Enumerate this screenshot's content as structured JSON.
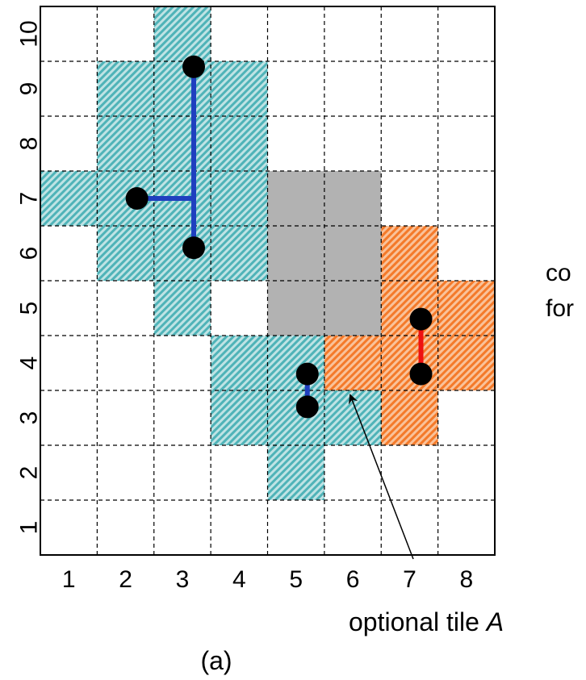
{
  "columns": [
    "1",
    "2",
    "3",
    "4",
    "5",
    "6",
    "7",
    "8"
  ],
  "rows": [
    "1",
    "2",
    "3",
    "4",
    "5",
    "6",
    "7",
    "8",
    "9",
    "10"
  ],
  "colors": {
    "teal": "#4fb3b8",
    "orange": "#f47a2a",
    "gray": "#b2b2b2",
    "blue_wire": "#1f3fbf",
    "red_wire": "#ee1111",
    "node": "#000000"
  },
  "regions": {
    "teal_cells": [
      [
        3,
        10
      ],
      [
        2,
        9
      ],
      [
        3,
        9
      ],
      [
        4,
        9
      ],
      [
        2,
        8
      ],
      [
        3,
        8
      ],
      [
        4,
        8
      ],
      [
        1,
        7
      ],
      [
        2,
        7
      ],
      [
        3,
        7
      ],
      [
        4,
        7
      ],
      [
        2,
        6
      ],
      [
        3,
        6
      ],
      [
        4,
        6
      ],
      [
        3,
        5
      ],
      [
        4,
        4
      ],
      [
        5,
        4
      ],
      [
        4,
        3
      ],
      [
        5,
        3
      ],
      [
        6,
        3
      ],
      [
        5,
        2
      ]
    ],
    "orange_cells": [
      [
        7,
        6
      ],
      [
        7,
        5
      ],
      [
        8,
        5
      ],
      [
        6,
        4
      ],
      [
        7,
        4
      ],
      [
        8,
        4
      ],
      [
        7,
        3
      ]
    ],
    "gray_cells": [
      [
        5,
        7
      ],
      [
        6,
        7
      ],
      [
        5,
        6
      ],
      [
        6,
        6
      ],
      [
        5,
        5
      ],
      [
        6,
        5
      ]
    ]
  },
  "nets": [
    {
      "color": "blue",
      "nodes": [
        [
          3.2,
          9.4
        ],
        [
          2.2,
          7.0
        ],
        [
          3.2,
          6.1
        ]
      ],
      "segments": [
        [
          [
            3.2,
            9.4
          ],
          [
            3.2,
            6.1
          ]
        ],
        [
          [
            2.2,
            7.0
          ],
          [
            3.2,
            7.0
          ]
        ]
      ]
    },
    {
      "color": "blue",
      "nodes": [
        [
          5.2,
          3.8
        ],
        [
          5.2,
          3.2
        ]
      ],
      "segments": [
        [
          [
            5.2,
            3.8
          ],
          [
            5.2,
            3.2
          ]
        ]
      ]
    },
    {
      "color": "red",
      "nodes": [
        [
          7.2,
          4.8
        ],
        [
          7.2,
          3.8
        ]
      ],
      "segments": [
        [
          [
            7.2,
            4.8
          ],
          [
            7.2,
            3.8
          ]
        ]
      ]
    }
  ],
  "side_text": [
    "co",
    "for"
  ],
  "annotation": {
    "text": "optional tile ",
    "italic": "A"
  },
  "caption": "(a)"
}
